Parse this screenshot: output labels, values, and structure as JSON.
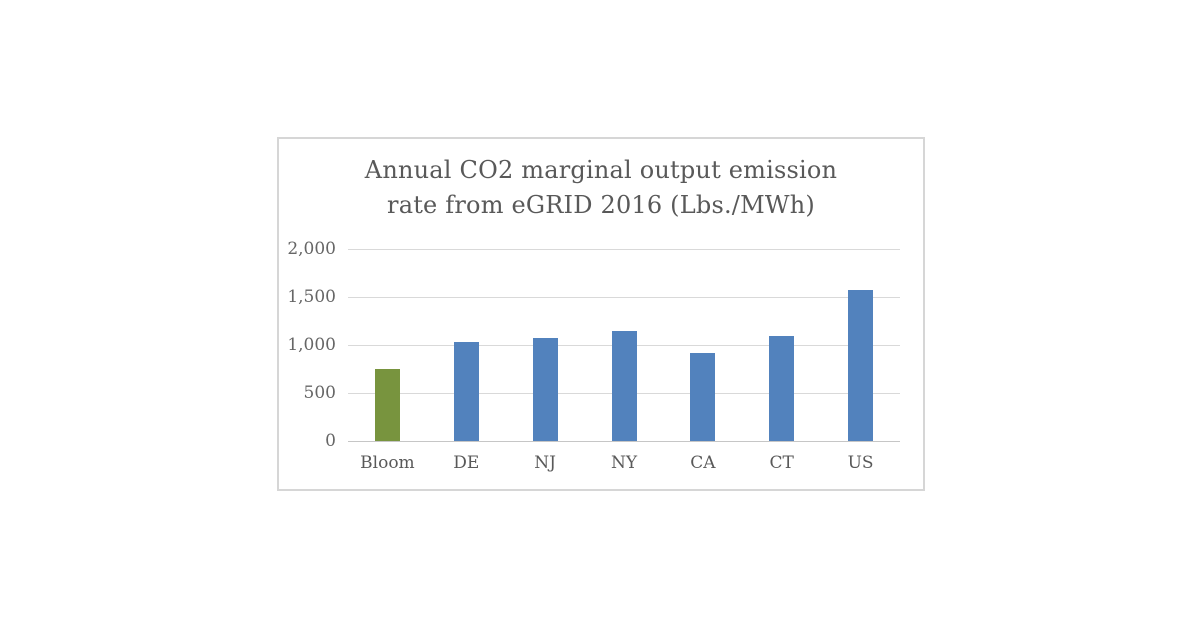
{
  "chart": {
    "title_lines": [
      "Annual CO2 marginal output emission",
      "rate from eGRID 2016 (Lbs./MWh)"
    ]
  },
  "chart_data": {
    "type": "bar",
    "title": "Annual CO2 marginal output emission rate from eGRID 2016 (Lbs./MWh)",
    "categories": [
      "Bloom",
      "DE",
      "NJ",
      "NY",
      "CA",
      "CT",
      "US"
    ],
    "values": [
      750,
      1030,
      1070,
      1150,
      920,
      1090,
      1570
    ],
    "bar_colors": [
      "#78943E",
      "#5282BD",
      "#5282BD",
      "#5282BD",
      "#5282BD",
      "#5282BD",
      "#5282BD"
    ],
    "highlight_color": "#78943E",
    "default_bar_color": "#5282BD",
    "xlabel": "",
    "ylabel": "",
    "ylim": [
      0,
      2000
    ],
    "yticks": [
      0,
      500,
      1000,
      1500,
      2000
    ],
    "ytick_labels": [
      "0",
      "500",
      "1,000",
      "1,500",
      "2,000"
    ],
    "grid": true,
    "legend": "none",
    "gridline_color": "#D9D9D9",
    "axis_line_color": "#C6C6C6",
    "title_color": "#595959",
    "tick_label_color": "#666666",
    "border_color": "#D6D6D6",
    "background_color": "#ffffff"
  }
}
